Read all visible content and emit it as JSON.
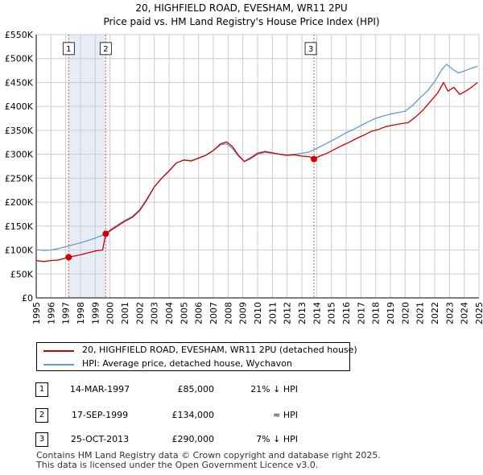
{
  "chart_data": {
    "type": "line",
    "title": "20, HIGHFIELD ROAD, EVESHAM, WR11 2PU",
    "subtitle": "Price paid vs. HM Land Registry's House Price Index (HPI)",
    "xlim": [
      1995,
      2025
    ],
    "ylim": [
      0,
      550000
    ],
    "x_ticks": [
      1995,
      1996,
      1997,
      1998,
      1999,
      2000,
      2001,
      2002,
      2003,
      2004,
      2005,
      2006,
      2007,
      2008,
      2009,
      2010,
      2011,
      2012,
      2013,
      2014,
      2015,
      2016,
      2017,
      2018,
      2019,
      2020,
      2021,
      2022,
      2023,
      2024,
      2025
    ],
    "y_ticks": [
      {
        "value": 0,
        "label": "£0"
      },
      {
        "value": 50000,
        "label": "£50K"
      },
      {
        "value": 100000,
        "label": "£100K"
      },
      {
        "value": 150000,
        "label": "£150K"
      },
      {
        "value": 200000,
        "label": "£200K"
      },
      {
        "value": 250000,
        "label": "£250K"
      },
      {
        "value": 300000,
        "label": "£300K"
      },
      {
        "value": 350000,
        "label": "£350K"
      },
      {
        "value": 400000,
        "label": "£400K"
      },
      {
        "value": 450000,
        "label": "£450K"
      },
      {
        "value": 500000,
        "label": "£500K"
      },
      {
        "value": 550000,
        "label": "£550K"
      }
    ],
    "grid": true,
    "series": [
      {
        "name": "20, HIGHFIELD ROAD, EVESHAM, WR11 2PU (detached house)",
        "color": "#cc0000",
        "points": [
          [
            1995.0,
            78000
          ],
          [
            1995.5,
            76000
          ],
          [
            1996.0,
            78000
          ],
          [
            1996.5,
            79000
          ],
          [
            1997.2,
            85000
          ],
          [
            1997.5,
            87000
          ],
          [
            1998.0,
            90000
          ],
          [
            1998.5,
            94000
          ],
          [
            1999.0,
            98000
          ],
          [
            1999.5,
            100000
          ],
          [
            1999.71,
            134000
          ],
          [
            2000.0,
            140000
          ],
          [
            2000.5,
            150000
          ],
          [
            2001.0,
            160000
          ],
          [
            2001.5,
            168000
          ],
          [
            2002.0,
            182000
          ],
          [
            2002.5,
            205000
          ],
          [
            2003.0,
            232000
          ],
          [
            2003.5,
            250000
          ],
          [
            2004.0,
            265000
          ],
          [
            2004.5,
            282000
          ],
          [
            2005.0,
            288000
          ],
          [
            2005.5,
            286000
          ],
          [
            2006.0,
            292000
          ],
          [
            2006.5,
            298000
          ],
          [
            2007.0,
            308000
          ],
          [
            2007.5,
            322000
          ],
          [
            2007.9,
            326000
          ],
          [
            2008.3,
            316000
          ],
          [
            2008.7,
            298000
          ],
          [
            2009.1,
            285000
          ],
          [
            2009.5,
            292000
          ],
          [
            2010.0,
            302000
          ],
          [
            2010.5,
            306000
          ],
          [
            2011.0,
            303000
          ],
          [
            2011.5,
            300000
          ],
          [
            2012.0,
            298000
          ],
          [
            2012.5,
            299000
          ],
          [
            2013.0,
            296000
          ],
          [
            2013.5,
            295000
          ],
          [
            2013.82,
            290000
          ],
          [
            2014.2,
            296000
          ],
          [
            2014.7,
            302000
          ],
          [
            2015.2,
            310000
          ],
          [
            2015.7,
            318000
          ],
          [
            2016.2,
            325000
          ],
          [
            2016.7,
            333000
          ],
          [
            2017.2,
            340000
          ],
          [
            2017.7,
            348000
          ],
          [
            2018.2,
            352000
          ],
          [
            2018.7,
            358000
          ],
          [
            2019.2,
            361000
          ],
          [
            2019.7,
            364000
          ],
          [
            2020.2,
            366000
          ],
          [
            2020.7,
            378000
          ],
          [
            2021.2,
            392000
          ],
          [
            2021.7,
            410000
          ],
          [
            2022.2,
            428000
          ],
          [
            2022.6,
            450000
          ],
          [
            2022.9,
            432000
          ],
          [
            2023.3,
            440000
          ],
          [
            2023.7,
            425000
          ],
          [
            2024.1,
            432000
          ],
          [
            2024.5,
            440000
          ],
          [
            2024.9,
            450000
          ]
        ]
      },
      {
        "name": "HPI: Average price, detached house, Wychavon",
        "color": "#6699cc",
        "points": [
          [
            1995.0,
            101000
          ],
          [
            1995.5,
            99000
          ],
          [
            1996.0,
            100000
          ],
          [
            1996.5,
            103000
          ],
          [
            1997.0,
            107000
          ],
          [
            1997.5,
            111000
          ],
          [
            1998.0,
            115000
          ],
          [
            1998.5,
            120000
          ],
          [
            1999.0,
            125000
          ],
          [
            1999.5,
            131000
          ],
          [
            1999.71,
            134000
          ],
          [
            2000.0,
            142000
          ],
          [
            2000.5,
            152000
          ],
          [
            2001.0,
            162000
          ],
          [
            2001.5,
            170000
          ],
          [
            2002.0,
            184000
          ],
          [
            2002.5,
            207000
          ],
          [
            2003.0,
            232000
          ],
          [
            2003.5,
            250000
          ],
          [
            2004.0,
            266000
          ],
          [
            2004.5,
            282000
          ],
          [
            2005.0,
            288000
          ],
          [
            2005.5,
            287000
          ],
          [
            2006.0,
            292000
          ],
          [
            2006.5,
            298000
          ],
          [
            2007.0,
            308000
          ],
          [
            2007.5,
            320000
          ],
          [
            2007.9,
            322000
          ],
          [
            2008.3,
            312000
          ],
          [
            2008.7,
            296000
          ],
          [
            2009.1,
            285000
          ],
          [
            2009.5,
            290000
          ],
          [
            2010.0,
            300000
          ],
          [
            2010.5,
            304000
          ],
          [
            2011.0,
            302000
          ],
          [
            2011.5,
            300000
          ],
          [
            2012.0,
            298000
          ],
          [
            2012.5,
            300000
          ],
          [
            2013.0,
            302000
          ],
          [
            2013.5,
            305000
          ],
          [
            2014.0,
            312000
          ],
          [
            2014.5,
            320000
          ],
          [
            2015.0,
            328000
          ],
          [
            2015.5,
            336000
          ],
          [
            2016.0,
            345000
          ],
          [
            2016.5,
            352000
          ],
          [
            2017.0,
            360000
          ],
          [
            2017.5,
            368000
          ],
          [
            2018.0,
            375000
          ],
          [
            2018.5,
            380000
          ],
          [
            2019.0,
            384000
          ],
          [
            2019.5,
            387000
          ],
          [
            2020.0,
            390000
          ],
          [
            2020.5,
            402000
          ],
          [
            2021.0,
            418000
          ],
          [
            2021.5,
            432000
          ],
          [
            2022.0,
            452000
          ],
          [
            2022.5,
            478000
          ],
          [
            2022.8,
            488000
          ],
          [
            2023.2,
            478000
          ],
          [
            2023.6,
            470000
          ],
          [
            2024.0,
            474000
          ],
          [
            2024.5,
            480000
          ],
          [
            2024.9,
            484000
          ]
        ]
      }
    ],
    "sales": [
      {
        "label": "1",
        "x": 1997.2,
        "price": 85000
      },
      {
        "label": "2",
        "x": 1999.71,
        "price": 134000
      },
      {
        "label": "3",
        "x": 2013.82,
        "price": 290000
      }
    ],
    "shaded_span": [
      1997.2,
      1999.71
    ],
    "marker_label_value": 520000
  },
  "transactions": [
    {
      "num": "1",
      "date": "14-MAR-1997",
      "price": "£85,000",
      "hpi": "21% ↓ HPI"
    },
    {
      "num": "2",
      "date": "17-SEP-1999",
      "price": "£134,000",
      "hpi": "≈ HPI"
    },
    {
      "num": "3",
      "date": "25-OCT-2013",
      "price": "£290,000",
      "hpi": "7% ↓ HPI"
    }
  ],
  "footer": {
    "line1": "Contains HM Land Registry data © Crown copyright and database right 2025.",
    "line2": "This data is licensed under the Open Government Licence v3.0."
  }
}
